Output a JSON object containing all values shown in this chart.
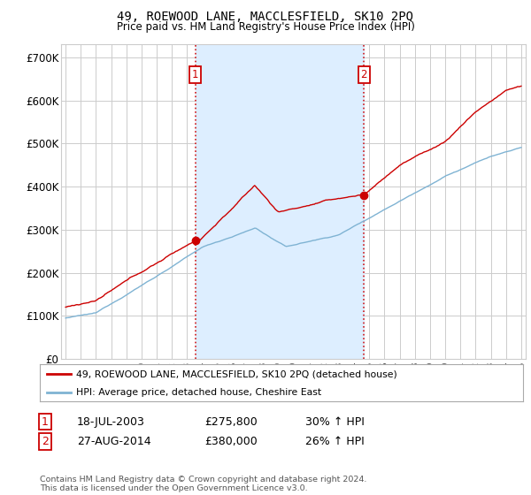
{
  "title": "49, ROEWOOD LANE, MACCLESFIELD, SK10 2PQ",
  "subtitle": "Price paid vs. HM Land Registry's House Price Index (HPI)",
  "ylabel_ticks": [
    "£0",
    "£100K",
    "£200K",
    "£300K",
    "£400K",
    "£500K",
    "£600K",
    "£700K"
  ],
  "ytick_values": [
    0,
    100000,
    200000,
    300000,
    400000,
    500000,
    600000,
    700000
  ],
  "ylim": [
    0,
    730000
  ],
  "xlim_start": 1994.7,
  "xlim_end": 2025.3,
  "sale1_date": 2003.54,
  "sale1_price": 275800,
  "sale1_label": "1",
  "sale2_date": 2014.65,
  "sale2_price": 380000,
  "sale2_label": "2",
  "red_color": "#cc0000",
  "blue_color": "#7fb3d3",
  "shade_color": "#ddeeff",
  "dashed_color": "#cc0000",
  "background_color": "#ffffff",
  "grid_color": "#cccccc",
  "legend_label_red": "49, ROEWOOD LANE, MACCLESFIELD, SK10 2PQ (detached house)",
  "legend_label_blue": "HPI: Average price, detached house, Cheshire East",
  "footer": "Contains HM Land Registry data © Crown copyright and database right 2024.\nThis data is licensed under the Open Government Licence v3.0.",
  "table_row1": [
    "1",
    "18-JUL-2003",
    "£275,800",
    "30% ↑ HPI"
  ],
  "table_row2": [
    "2",
    "27-AUG-2014",
    "£380,000",
    "26% ↑ HPI"
  ]
}
